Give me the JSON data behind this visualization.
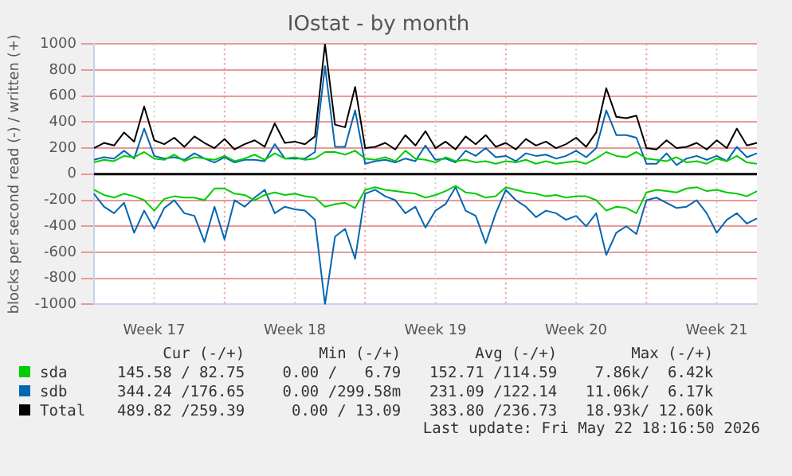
{
  "chart_data": {
    "type": "line",
    "title": "IOstat - by month",
    "ylabel": "blocks per second read (-) / written (+)",
    "categories": [
      null,
      null,
      null,
      null,
      null,
      null,
      "Week 17",
      null,
      null,
      null,
      null,
      null,
      null,
      null,
      null,
      null,
      null,
      null,
      null,
      null,
      "Week 18",
      null,
      null,
      null,
      null,
      null,
      null,
      null,
      null,
      null,
      null,
      null,
      null,
      null,
      "Week 19",
      null,
      null,
      null,
      null,
      null,
      null,
      null,
      null,
      null,
      null,
      null,
      null,
      null,
      "Week 20",
      null,
      null,
      null,
      null,
      null,
      null,
      null,
      null,
      null,
      null,
      null,
      null,
      null,
      "Week 21",
      null,
      null,
      null,
      null
    ],
    "series": [
      {
        "name": "sda",
        "color": "#00cc00",
        "values": [
          90,
          110,
          100,
          140,
          130,
          170,
          120,
          110,
          150,
          100,
          130,
          120,
          110,
          140,
          100,
          120,
          150,
          110,
          160,
          120,
          130,
          110,
          120,
          170,
          170,
          150,
          180,
          120,
          110,
          130,
          100,
          180,
          120,
          110,
          90,
          130,
          100,
          110,
          90,
          100,
          80,
          100,
          90,
          110,
          80,
          100,
          80,
          90,
          100,
          80,
          120,
          170,
          140,
          130,
          170,
          120,
          110,
          100,
          130,
          90,
          100,
          80,
          120,
          100,
          140,
          90,
          80
        ]
      },
      {
        "color": "#00cc00",
        "values": [
          -120,
          -160,
          -180,
          -150,
          -170,
          -200,
          -280,
          -190,
          -170,
          -180,
          -180,
          -200,
          -110,
          -110,
          -150,
          -160,
          -200,
          -160,
          -140,
          -160,
          -150,
          -170,
          -180,
          -250,
          -230,
          -220,
          -260,
          -120,
          -100,
          -120,
          -130,
          -140,
          -150,
          -180,
          -160,
          -130,
          -90,
          -140,
          -150,
          -180,
          -170,
          -100,
          -120,
          -140,
          -150,
          -170,
          -160,
          -180,
          -170,
          -170,
          -200,
          -280,
          -250,
          -260,
          -300,
          -140,
          -120,
          -130,
          -140,
          -110,
          -100,
          -130,
          -120,
          -140,
          -150,
          -170,
          -130
        ]
      },
      {
        "name": "sdb",
        "color": "#0066b3",
        "values": [
          110,
          130,
          120,
          180,
          120,
          350,
          140,
          120,
          130,
          110,
          160,
          120,
          90,
          130,
          90,
          110,
          110,
          100,
          230,
          120,
          120,
          120,
          170,
          830,
          210,
          210,
          490,
          80,
          100,
          110,
          90,
          120,
          100,
          220,
          110,
          120,
          90,
          180,
          140,
          200,
          130,
          140,
          100,
          160,
          140,
          150,
          120,
          140,
          180,
          130,
          200,
          490,
          300,
          300,
          280,
          80,
          80,
          160,
          70,
          120,
          140,
          110,
          140,
          100,
          210,
          130,
          160
        ]
      },
      {
        "color": "#0066b3",
        "values": [
          -150,
          -250,
          -300,
          -220,
          -450,
          -280,
          -420,
          -260,
          -200,
          -300,
          -320,
          -520,
          -250,
          -500,
          -200,
          -250,
          -180,
          -120,
          -300,
          -250,
          -270,
          -280,
          -350,
          -1000,
          -480,
          -420,
          -650,
          -150,
          -120,
          -170,
          -200,
          -300,
          -250,
          -410,
          -280,
          -230,
          -100,
          -280,
          -320,
          -530,
          -300,
          -120,
          -200,
          -250,
          -330,
          -280,
          -300,
          -350,
          -320,
          -400,
          -300,
          -620,
          -450,
          -400,
          -460,
          -200,
          -180,
          -220,
          -260,
          -250,
          -200,
          -300,
          -450,
          -350,
          -300,
          -380,
          -340
        ]
      },
      {
        "name": "Total",
        "color": "#000000",
        "values": [
          200,
          240,
          220,
          320,
          250,
          520,
          260,
          230,
          280,
          210,
          290,
          240,
          200,
          270,
          190,
          230,
          260,
          210,
          390,
          240,
          250,
          230,
          290,
          1000,
          380,
          360,
          670,
          200,
          210,
          240,
          190,
          300,
          220,
          330,
          200,
          250,
          190,
          290,
          230,
          300,
          210,
          240,
          190,
          270,
          220,
          250,
          200,
          230,
          280,
          210,
          320,
          660,
          440,
          430,
          450,
          200,
          190,
          260,
          200,
          210,
          240,
          190,
          260,
          200,
          350,
          220,
          240
        ]
      }
    ],
    "ylim": [
      -1000,
      1000
    ],
    "yticks": [
      -1000,
      -800,
      -600,
      -400,
      -200,
      0,
      200,
      400,
      600,
      800,
      1000
    ],
    "grid": true,
    "legend": "bottom",
    "annotations": [
      "Cur (-/+)",
      "Min (-/+)",
      "Avg (-/+)",
      "Max (-/+)",
      "145.58 / 82.75",
      "0.00 /   6.79",
      "152.71 /114.59",
      "7.86k/  6.42k",
      "344.24 /176.65",
      "0.00 /299.58m",
      "231.09 /122.14",
      "11.06k/  6.17k",
      "489.82 /259.39",
      "0.00 / 13.09",
      "383.80 /236.73",
      "18.93k/ 12.60k",
      "Last update: Fri May 22 18:16:50 2026"
    ]
  }
}
